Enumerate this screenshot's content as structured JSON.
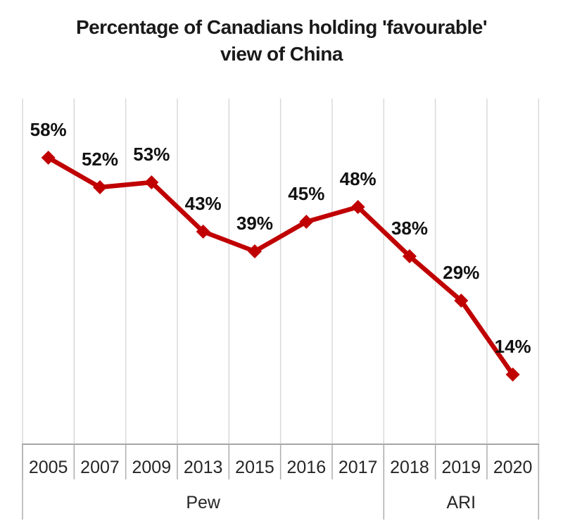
{
  "title": {
    "line1": "Percentage of Canadians holding 'favourable'",
    "line2": "view of China"
  },
  "chart_data": {
    "type": "line",
    "title": "Percentage of Canadians holding 'favourable' view of China",
    "categories": [
      "2005",
      "2007",
      "2009",
      "2013",
      "2015",
      "2016",
      "2017",
      "2018",
      "2019",
      "2020"
    ],
    "values": [
      58,
      52,
      53,
      43,
      39,
      45,
      48,
      38,
      29,
      14
    ],
    "data_labels": [
      "58%",
      "52%",
      "53%",
      "43%",
      "39%",
      "45%",
      "48%",
      "38%",
      "29%",
      "14%"
    ],
    "groups": [
      {
        "label": "Pew",
        "span": 7
      },
      {
        "label": "ARI",
        "span": 3
      }
    ],
    "xlabel": "",
    "ylabel": "",
    "ylim": [
      0,
      70
    ],
    "grid": "vertical",
    "legend": "none",
    "marker": "diamond",
    "colors": {
      "series": "#C00000",
      "gridline": "#D9D9D9",
      "axis": "#A6A6A6",
      "tick": "#ADADAD"
    }
  }
}
